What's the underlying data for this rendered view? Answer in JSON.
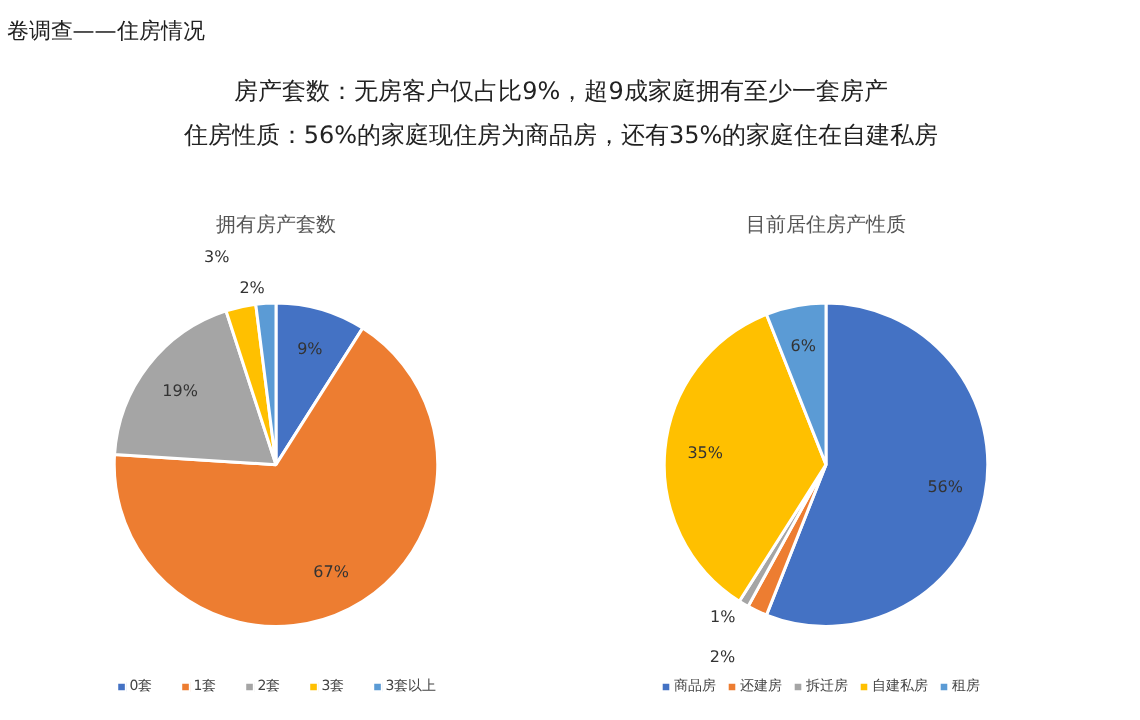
{
  "chart_data": [
    {
      "type": "other",
      "title": "卷调查——住房情况",
      "annotations": [
        "房产套数：无房客户仅占比9%，超9成家庭拥有至少一套房产",
        "住房性质：56%的家庭现住房为商品房，还有35%的家庭住在自建私房"
      ]
    },
    {
      "type": "pie",
      "title": "拥有房产套数",
      "categories": [
        "0套",
        "1套",
        "2套",
        "3套",
        "3套以上"
      ],
      "values": [
        9,
        67,
        19,
        3,
        2
      ],
      "colors": [
        "#4472c4",
        "#ed7d31",
        "#a5a5a5",
        "#ffc000",
        "#5b9bd5"
      ],
      "value_labels": [
        "9%",
        "67%",
        "19%",
        "3%",
        "2%"
      ],
      "legend": "bottom"
    },
    {
      "type": "pie",
      "title": "目前居住房产性质",
      "categories": [
        "商品房",
        "还建房",
        "拆迁房",
        "自建私房",
        "租房"
      ],
      "values": [
        56,
        2,
        1,
        35,
        6
      ],
      "colors": [
        "#4472c4",
        "#ed7d31",
        "#a5a5a5",
        "#ffc000",
        "#5b9bd5"
      ],
      "value_labels": [
        "56%",
        "2%",
        "1%",
        "35%",
        "6%"
      ],
      "legend": "bottom"
    }
  ]
}
